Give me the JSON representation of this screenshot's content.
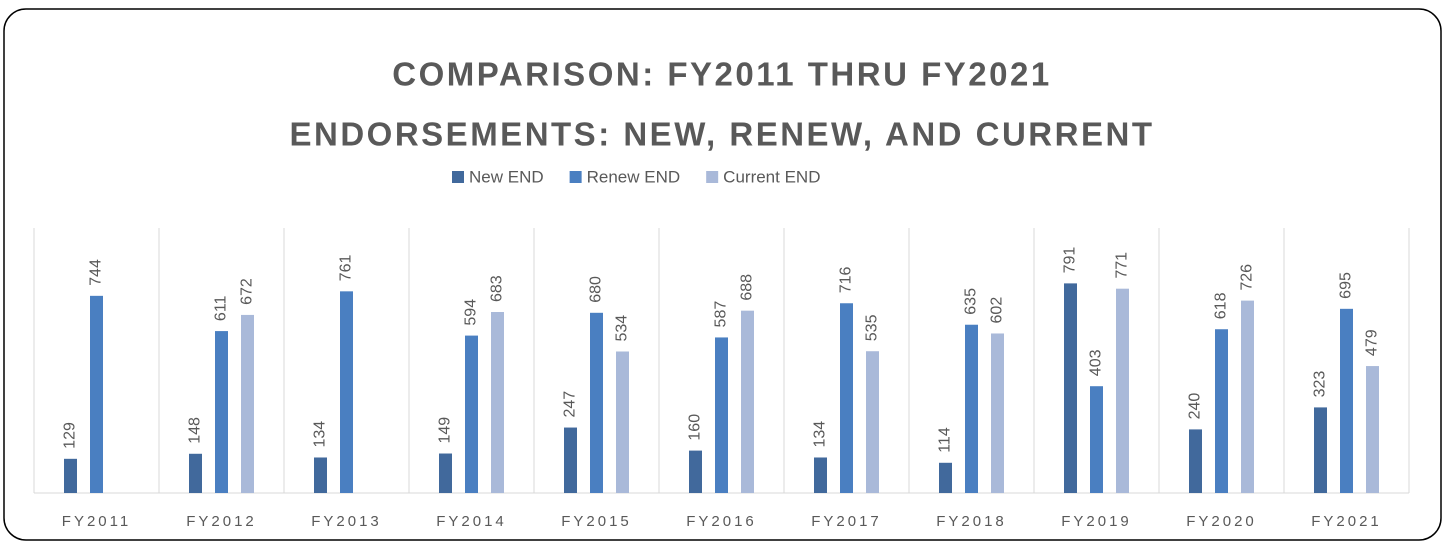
{
  "chart_data": {
    "type": "bar",
    "title": [
      "COMPARISON: FY2011 THRU FY2021",
      "ENDORSEMENTS: NEW, RENEW, AND CURRENT"
    ],
    "categories": [
      "FY2011",
      "FY2012",
      "FY2013",
      "FY2014",
      "FY2015",
      "FY2016",
      "FY2017",
      "FY2018",
      "FY2019",
      "FY2020",
      "FY2021"
    ],
    "series": [
      {
        "name": "New END",
        "color": "#41699c",
        "values": [
          129,
          148,
          134,
          149,
          247,
          160,
          134,
          114,
          791,
          240,
          323
        ]
      },
      {
        "name": "Renew END",
        "color": "#4a7fc1",
        "values": [
          744,
          611,
          761,
          594,
          680,
          587,
          716,
          635,
          403,
          618,
          695
        ]
      },
      {
        "name": "Current END",
        "color": "#a9b9d9",
        "values": [
          null,
          672,
          null,
          683,
          534,
          688,
          535,
          602,
          771,
          726,
          479
        ]
      }
    ],
    "ylim": [
      0,
      1000
    ]
  }
}
